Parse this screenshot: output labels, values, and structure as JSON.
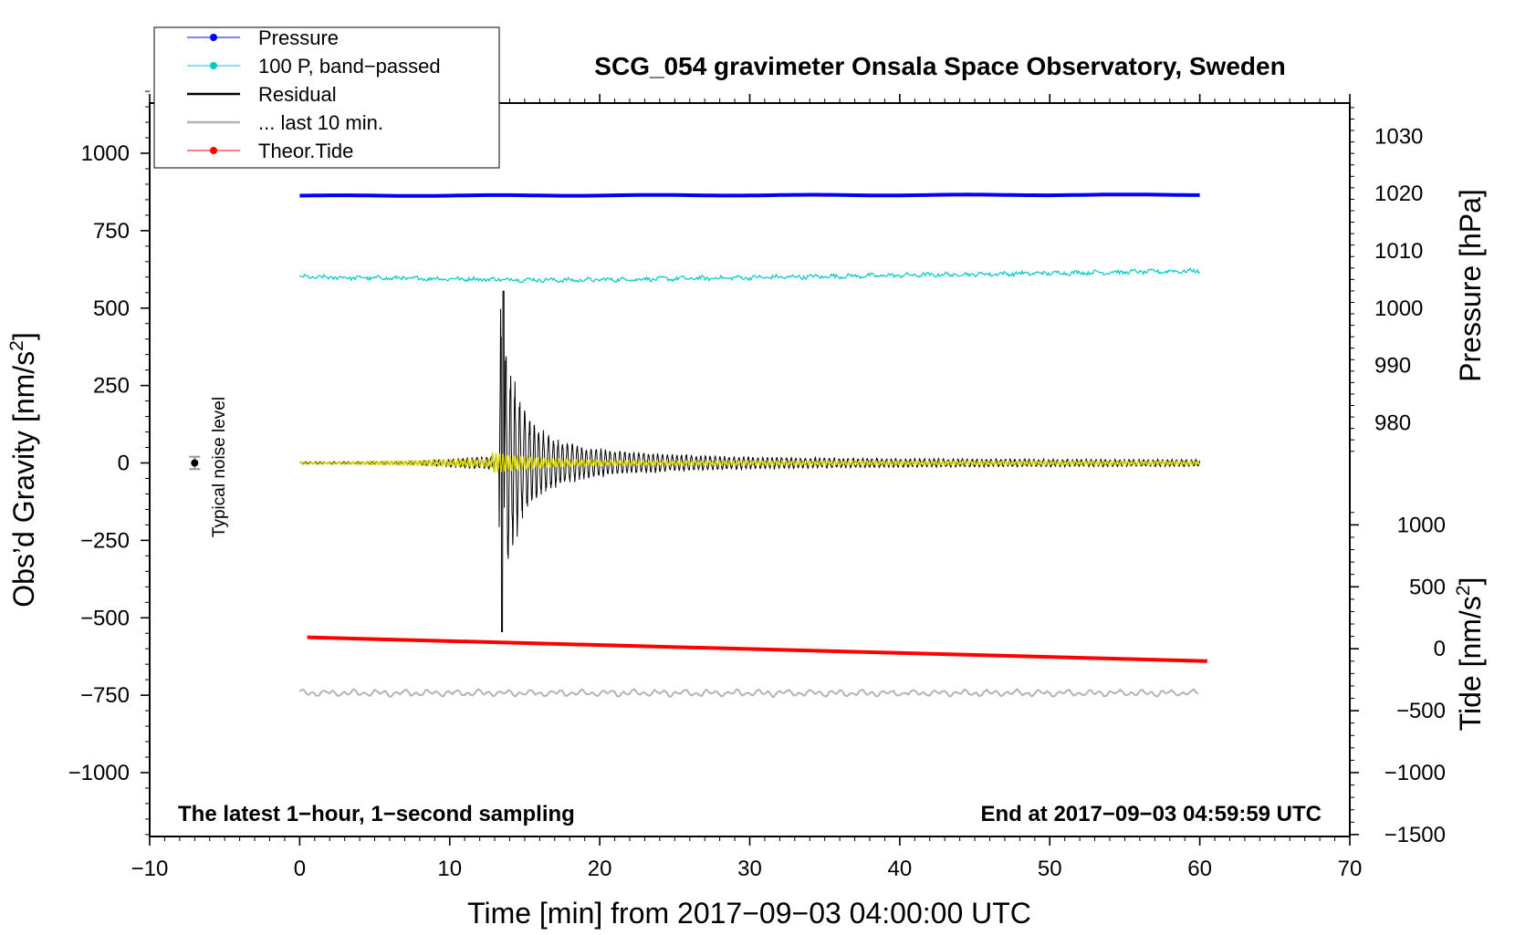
{
  "chart_data": {
    "type": "line",
    "title": "SCG_054 gravimeter Onsala Space Observatory, Sweden",
    "xlabel": "Time [min] from 2017−09−03 04:00:00 UTC",
    "ylabel_main": "Obs’d Gravity [nm/s",
    "ylabel_pressure": "Pressure [hPa]",
    "ylabel_tide": "Tide [nm/s",
    "xlim": [
      -10,
      70
    ],
    "ylim": [
      -1200,
      1200
    ],
    "x_ticks": [
      -10,
      0,
      10,
      20,
      30,
      40,
      50,
      60,
      70
    ],
    "x_tick_labels": [
      "−10",
      "0",
      "10",
      "20",
      "30",
      "40",
      "50",
      "60",
      "70"
    ],
    "y_ticks": [
      1000,
      750,
      500,
      250,
      0,
      -250,
      -500,
      -750,
      -1000
    ],
    "y_tick_labels": [
      "1000",
      "750",
      "500",
      "250",
      "0",
      "−250",
      "−500",
      "−750",
      "−1000"
    ],
    "pressure_axis": {
      "ticks": [
        1030,
        1020,
        1010,
        1000,
        990,
        980
      ],
      "tick_labels": [
        "1030",
        "1020",
        "1010",
        "1000",
        "990",
        "980"
      ],
      "map": {
        "value_a": 1000,
        "gravity_a": 500,
        "value_b": 980,
        "gravity_b": 130
      }
    },
    "tide_axis": {
      "ticks": [
        1000,
        500,
        0,
        -500,
        -1000,
        -1500
      ],
      "tick_labels": [
        "1000",
        "500",
        "0",
        "−500",
        "−1000",
        "−1500"
      ],
      "map": {
        "value_a": 0,
        "gravity_a": -600,
        "value_b": -1500,
        "gravity_b": -1200
      }
    },
    "legend": [
      {
        "label": "Pressure",
        "color": "#0000ff",
        "marker": true
      },
      {
        "label": "100 P, band−passed",
        "color": "#00c8c8",
        "marker": true
      },
      {
        "label": "Residual",
        "color": "#000000",
        "marker": false
      },
      {
        "label": "... last 10 min.",
        "color": "#b4b4b4",
        "marker": false
      },
      {
        "label": "Theor.Tide",
        "color": "#ff0000",
        "marker": true
      }
    ],
    "series": [
      {
        "name": "Pressure",
        "color": "#0000ff",
        "x_range": [
          0,
          60
        ],
        "y_start": 863,
        "y_end": 866,
        "unit": "gravity-scale"
      },
      {
        "name": "100 P, band-passed",
        "color": "#00c8c8",
        "x_range": [
          0,
          60
        ],
        "y_start": 600,
        "y_mid": 590,
        "y_end": 620
      },
      {
        "name": "Residual",
        "color": "#000000",
        "x_range": [
          0,
          60
        ],
        "baseline": 0,
        "event_start_min": 13.3,
        "event_peak": 555,
        "event_trough": -545
      },
      {
        "name": "Residual filtered",
        "color": "#d2d200",
        "x_range": [
          0,
          60
        ],
        "baseline": 0
      },
      {
        "name": "Theor.Tide",
        "color": "#ff0000",
        "x_range": [
          0.5,
          60.5
        ],
        "y_start": -563,
        "y_end": -640
      },
      {
        "name": "... last 10 min.",
        "color": "#b4b4b4",
        "x_range": [
          0,
          60
        ],
        "baseline": -743
      }
    ],
    "noise_marker": {
      "x": -7,
      "y": 0,
      "error": 20
    },
    "noise_label": "Typical noise level",
    "footer_left": "The latest 1−hour, 1−second sampling",
    "footer_right": "End at 2017−09−03 04:59:59 UTC"
  }
}
